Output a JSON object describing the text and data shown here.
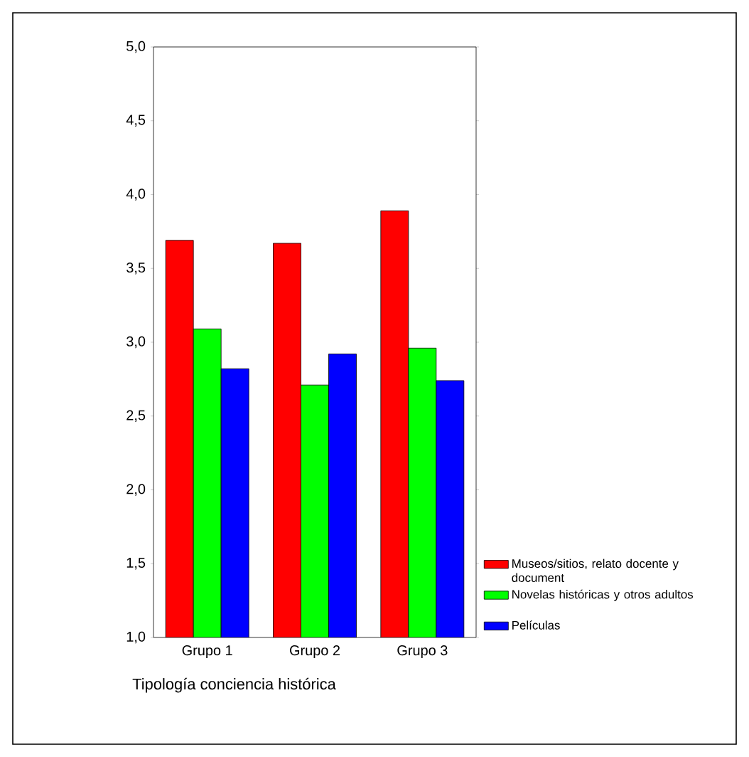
{
  "chart_data": {
    "type": "bar",
    "xlabel": "Tipología conciencia histórica",
    "categories": [
      "Grupo 1",
      "Grupo 2",
      "Grupo 3"
    ],
    "series": [
      {
        "name": "Museos/sitios, relato docente y document",
        "color": "#ff0000",
        "values": [
          3.69,
          3.67,
          3.89
        ]
      },
      {
        "name": "Novelas históricas y otros adultos",
        "color": "#00ff00",
        "values": [
          3.09,
          2.71,
          2.96
        ]
      },
      {
        "name": "Películas",
        "color": "#0000ff",
        "values": [
          2.82,
          2.92,
          2.74
        ]
      }
    ],
    "ylim": [
      1,
      5
    ],
    "yticks": [
      {
        "value": 1,
        "label": "1,0"
      },
      {
        "value": 1.5,
        "label": "1,5"
      },
      {
        "value": 2,
        "label": "2,0"
      },
      {
        "value": 2.5,
        "label": "2,5"
      },
      {
        "value": 3,
        "label": "3,0"
      },
      {
        "value": 3.5,
        "label": "3,5"
      },
      {
        "value": 4,
        "label": "4,0"
      },
      {
        "value": 4.5,
        "label": "4,5"
      },
      {
        "value": 5,
        "label": "5,0"
      }
    ],
    "grid": false,
    "legend": "right"
  }
}
